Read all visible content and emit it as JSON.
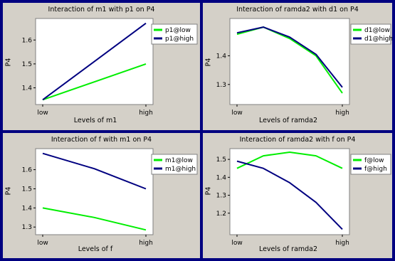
{
  "colors": {
    "low": "#00ee00",
    "high": "#000080",
    "border": "#000080",
    "panel": "#d4d0c8"
  },
  "chart_data": [
    {
      "type": "line",
      "title": "Interaction of m1 with p1 on P4",
      "xlabel": "Levels of m1",
      "ylabel": "P4",
      "categories": [
        "low",
        "high"
      ],
      "ylim": [
        1.33,
        1.69
      ],
      "yticks": [
        "1.4",
        "1.5",
        "1.6"
      ],
      "series": [
        {
          "name": "p1@low",
          "x": [
            0,
            1
          ],
          "y": [
            1.35,
            1.5
          ]
        },
        {
          "name": "p1@high",
          "x": [
            0,
            1
          ],
          "y": [
            1.35,
            1.67
          ]
        }
      ]
    },
    {
      "type": "line",
      "title": "Interaction of ramda2 with d1 on P4",
      "xlabel": "Levels of ramda2",
      "ylabel": "P4",
      "categories": [
        "low",
        "high"
      ],
      "ylim": [
        1.23,
        1.53
      ],
      "yticks": [
        "1.3",
        "1.4"
      ],
      "series": [
        {
          "name": "d1@low",
          "x": [
            0,
            0.25,
            0.5,
            0.75,
            1
          ],
          "y": [
            1.475,
            1.5,
            1.46,
            1.4,
            1.27
          ]
        },
        {
          "name": "d1@high",
          "x": [
            0,
            0.25,
            0.5,
            0.75,
            1
          ],
          "y": [
            1.48,
            1.5,
            1.465,
            1.405,
            1.29
          ]
        }
      ]
    },
    {
      "type": "line",
      "title": "Interaction of f with m1 on P4",
      "xlabel": "Levels of f",
      "ylabel": "P4",
      "categories": [
        "low",
        "high"
      ],
      "ylim": [
        1.26,
        1.71
      ],
      "yticks": [
        "1.3",
        "1.4",
        "1.5",
        "1.6"
      ],
      "series": [
        {
          "name": "m1@low",
          "x": [
            0,
            0.5,
            1
          ],
          "y": [
            1.4,
            1.35,
            1.285
          ]
        },
        {
          "name": "m1@high",
          "x": [
            0,
            0.5,
            1
          ],
          "y": [
            1.685,
            1.605,
            1.5
          ]
        }
      ]
    },
    {
      "type": "line",
      "title": "Interaction of ramda2 with f on P4",
      "xlabel": "Levels of ramda2",
      "ylabel": "P4",
      "categories": [
        "low",
        "high"
      ],
      "ylim": [
        1.08,
        1.56
      ],
      "yticks": [
        "1.2",
        "1.3",
        "1.4",
        "1.5"
      ],
      "series": [
        {
          "name": "f@low",
          "x": [
            0,
            0.25,
            0.5,
            0.75,
            1
          ],
          "y": [
            1.45,
            1.52,
            1.54,
            1.52,
            1.45
          ]
        },
        {
          "name": "f@high",
          "x": [
            0,
            0.25,
            0.5,
            0.75,
            1
          ],
          "y": [
            1.49,
            1.45,
            1.37,
            1.26,
            1.11
          ]
        }
      ]
    }
  ]
}
